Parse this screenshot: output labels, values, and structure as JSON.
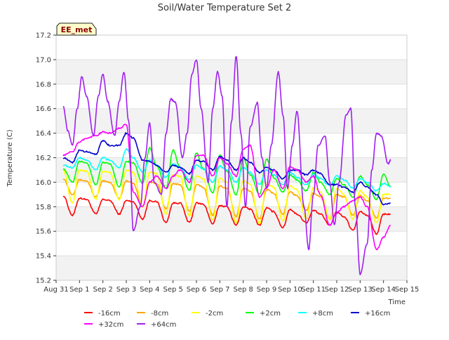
{
  "chart_data": {
    "type": "line",
    "title": "Soil/Water Temperature Set 2",
    "xlabel": "Time",
    "ylabel": "Temperature (C)",
    "station_tag": "EE_met",
    "ylim": [
      15.2,
      17.2
    ],
    "xlim": [
      0,
      15
    ],
    "y_ticks": [
      15.2,
      15.4,
      15.6,
      15.8,
      16.0,
      16.2,
      16.4,
      16.6,
      16.8,
      17.0,
      17.2
    ],
    "y_tick_labels": [
      "15.2",
      "15.4",
      "15.6",
      "15.8",
      "16.0",
      "16.2",
      "16.4",
      "16.6",
      "16.8",
      "17.0",
      "17.2"
    ],
    "x_ticks": [
      0,
      1,
      2,
      3,
      4,
      5,
      6,
      7,
      8,
      9,
      10,
      11,
      12,
      13,
      14,
      15
    ],
    "x_tick_labels": [
      "Aug 31",
      "Sep 1",
      "Sep 2",
      "Sep 3",
      "Sep 4",
      "Sep 5",
      "Sep 6",
      "Sep 7",
      "Sep 8",
      "Sep 9",
      "Sep 10",
      "Sep 11",
      "Sep 12",
      "Sep 13",
      "Sep 14",
      "Sep 15"
    ],
    "grid": "horizontal bands",
    "legend_position": "bottom",
    "series": [
      {
        "name": "-16cm",
        "color": "#ff0000",
        "x": [
          0.3,
          0.7,
          1.0,
          1.3,
          1.7,
          2.0,
          2.3,
          2.7,
          3.0,
          3.3,
          3.7,
          4.0,
          4.3,
          4.7,
          5.0,
          5.3,
          5.7,
          6.0,
          6.3,
          6.7,
          7.0,
          7.3,
          7.7,
          8.0,
          8.3,
          8.7,
          9.0,
          9.3,
          9.7,
          10.0,
          10.3,
          10.7,
          11.0,
          11.3,
          11.7,
          12.0,
          12.3,
          12.7,
          13.0,
          13.3,
          13.7,
          14.0,
          14.3
        ],
        "y": [
          15.89,
          15.73,
          15.87,
          15.86,
          15.74,
          15.86,
          15.85,
          15.74,
          15.85,
          15.84,
          15.7,
          15.85,
          15.84,
          15.67,
          15.83,
          15.83,
          15.67,
          15.83,
          15.82,
          15.66,
          15.81,
          15.8,
          15.65,
          15.8,
          15.78,
          15.65,
          15.79,
          15.76,
          15.63,
          15.78,
          15.74,
          15.67,
          15.77,
          15.74,
          15.65,
          15.76,
          15.72,
          15.61,
          15.76,
          15.73,
          15.58,
          15.74,
          15.74
        ]
      },
      {
        "name": "-8cm",
        "color": "#ffa500",
        "x": [
          0.3,
          0.7,
          1.0,
          1.3,
          1.7,
          2.0,
          2.3,
          2.7,
          3.0,
          3.3,
          3.7,
          4.0,
          4.3,
          4.7,
          5.0,
          5.3,
          5.7,
          6.0,
          6.3,
          6.7,
          7.0,
          7.3,
          7.7,
          8.0,
          8.3,
          8.7,
          9.0,
          9.3,
          9.7,
          10.0,
          10.3,
          10.7,
          11.0,
          11.3,
          11.7,
          12.0,
          12.3,
          12.7,
          13.0,
          13.3,
          13.7,
          14.0,
          14.3
        ],
        "y": [
          16.03,
          15.9,
          16.02,
          16.01,
          15.88,
          16.01,
          16.0,
          15.87,
          16.01,
          15.99,
          15.8,
          16.0,
          15.99,
          15.78,
          15.99,
          15.98,
          15.76,
          15.98,
          15.96,
          15.73,
          15.97,
          15.95,
          15.72,
          15.95,
          15.93,
          15.7,
          15.94,
          15.91,
          15.74,
          15.92,
          15.89,
          15.77,
          15.91,
          15.88,
          15.7,
          15.9,
          15.88,
          15.73,
          15.89,
          15.85,
          15.71,
          15.87,
          15.87
        ]
      },
      {
        "name": "-2cm",
        "color": "#ffff00",
        "x": [
          0.3,
          0.7,
          1.0,
          1.3,
          1.7,
          2.0,
          2.3,
          2.7,
          3.0,
          3.3,
          3.7,
          4.0,
          4.3,
          4.7,
          5.0,
          5.3,
          5.7,
          6.0,
          6.3,
          6.7,
          7.0,
          7.3,
          7.7,
          8.0,
          8.3,
          8.7,
          9.0,
          9.3,
          9.7,
          10.0,
          10.3,
          10.7,
          11.0,
          11.3,
          11.7,
          12.0,
          12.3,
          12.7,
          13.0,
          13.3,
          13.7,
          14.0,
          14.3
        ],
        "y": [
          16.1,
          15.83,
          16.1,
          16.09,
          15.86,
          16.09,
          16.08,
          15.86,
          16.1,
          16.08,
          15.8,
          16.08,
          16.07,
          15.74,
          16.06,
          16.05,
          15.72,
          16.05,
          16.03,
          15.69,
          16.03,
          16.0,
          15.67,
          16.01,
          15.98,
          15.66,
          15.99,
          15.96,
          15.68,
          15.97,
          15.94,
          15.7,
          15.96,
          15.92,
          15.7,
          15.95,
          15.9,
          15.7,
          15.93,
          15.88,
          15.67,
          15.9,
          15.9
        ]
      },
      {
        "name": "+2cm",
        "color": "#00ff00",
        "x": [
          0.3,
          0.7,
          1.0,
          1.3,
          1.7,
          2.0,
          2.3,
          2.7,
          3.0,
          3.3,
          3.7,
          4.0,
          4.3,
          4.7,
          5.0,
          5.3,
          5.7,
          6.0,
          6.3,
          6.7,
          7.0,
          7.3,
          7.7,
          8.0,
          8.3,
          8.7,
          9.0,
          9.3,
          9.7,
          10.0,
          10.3,
          10.7,
          11.0,
          11.3,
          11.7,
          12.0,
          12.3,
          12.7,
          13.0,
          13.3,
          13.7,
          14.0,
          14.3
        ],
        "y": [
          16.11,
          16.0,
          16.17,
          16.16,
          15.98,
          16.16,
          16.15,
          15.96,
          16.17,
          16.16,
          15.99,
          16.28,
          16.13,
          15.95,
          16.26,
          16.12,
          15.93,
          16.24,
          16.11,
          15.91,
          16.22,
          16.09,
          15.9,
          16.2,
          16.06,
          15.9,
          16.19,
          16.04,
          15.92,
          16.06,
          16.02,
          15.93,
          16.08,
          16.0,
          15.9,
          16.03,
          15.98,
          15.88,
          16.05,
          15.98,
          15.86,
          16.07,
          15.96
        ]
      },
      {
        "name": "+8cm",
        "color": "#00ffff",
        "x": [
          0.3,
          0.7,
          1.0,
          1.3,
          1.7,
          2.0,
          2.3,
          2.7,
          3.0,
          3.3,
          3.7,
          4.0,
          4.3,
          4.7,
          5.0,
          5.3,
          5.7,
          6.0,
          6.3,
          6.7,
          7.0,
          7.3,
          7.7,
          8.0,
          8.3,
          8.7,
          9.0,
          9.3,
          9.7,
          10.0,
          10.3,
          10.7,
          11.0,
          11.3,
          11.7,
          12.0,
          12.3,
          12.7,
          13.0,
          13.3,
          13.7,
          14.0,
          14.3
        ],
        "y": [
          16.14,
          16.12,
          16.2,
          16.18,
          16.1,
          16.2,
          16.18,
          16.12,
          16.27,
          16.2,
          16.08,
          16.18,
          16.14,
          16.04,
          16.15,
          16.12,
          16.02,
          16.14,
          16.11,
          16.0,
          16.13,
          16.1,
          16.0,
          16.12,
          16.08,
          15.98,
          16.1,
          16.06,
          15.98,
          16.08,
          16.04,
          15.98,
          16.07,
          16.03,
          15.97,
          16.05,
          16.02,
          15.95,
          16.03,
          16.0,
          15.93,
          15.99,
          15.96
        ]
      },
      {
        "name": "+16cm",
        "color": "#0000cd",
        "x": [
          0.3,
          0.7,
          1.0,
          1.3,
          1.7,
          2.0,
          2.3,
          2.7,
          3.0,
          3.3,
          3.7,
          4.0,
          4.3,
          4.7,
          5.0,
          5.3,
          5.7,
          6.0,
          6.3,
          6.7,
          7.0,
          7.3,
          7.7,
          8.0,
          8.3,
          8.7,
          9.0,
          9.3,
          9.7,
          10.0,
          10.3,
          10.7,
          11.0,
          11.3,
          11.7,
          12.0,
          12.3,
          12.7,
          13.0,
          13.3,
          13.7,
          14.0,
          14.3
        ],
        "y": [
          16.2,
          16.16,
          16.26,
          16.25,
          16.23,
          16.34,
          16.3,
          16.3,
          16.4,
          16.36,
          16.18,
          16.17,
          16.14,
          16.08,
          16.14,
          16.12,
          16.07,
          16.18,
          16.17,
          16.1,
          16.21,
          16.18,
          16.1,
          16.2,
          16.16,
          16.08,
          16.12,
          16.1,
          16.03,
          16.1,
          16.1,
          16.06,
          16.1,
          16.07,
          15.98,
          15.98,
          15.96,
          15.92,
          16.0,
          15.96,
          15.9,
          15.82,
          15.83
        ]
      },
      {
        "name": "+32cm",
        "color": "#ff00ff",
        "x": [
          0.3,
          0.7,
          1.0,
          1.3,
          1.7,
          2.0,
          2.3,
          2.7,
          3.0,
          3.3,
          3.7,
          4.0,
          4.3,
          4.7,
          5.0,
          5.3,
          5.7,
          6.0,
          6.3,
          6.7,
          7.0,
          7.3,
          7.7,
          8.0,
          8.3,
          8.7,
          9.0,
          9.3,
          9.7,
          10.0,
          10.3,
          10.7,
          11.0,
          11.3,
          11.7,
          12.0,
          12.3,
          12.7,
          13.0,
          13.3,
          13.7,
          14.0,
          14.3
        ],
        "y": [
          16.22,
          16.25,
          16.33,
          16.36,
          16.38,
          16.41,
          16.4,
          16.44,
          16.47,
          15.92,
          15.8,
          16.0,
          16.05,
          15.95,
          16.05,
          16.1,
          16.0,
          16.22,
          16.22,
          16.05,
          16.2,
          16.15,
          16.05,
          16.27,
          16.3,
          15.88,
          15.95,
          16.1,
          15.95,
          16.13,
          16.1,
          16.0,
          16.05,
          15.9,
          15.65,
          15.75,
          15.8,
          15.85,
          15.88,
          15.8,
          15.45,
          15.55,
          15.65
        ]
      },
      {
        "name": "+64cm",
        "color": "#a020f0",
        "x": [
          0.3,
          0.5,
          0.7,
          0.9,
          1.1,
          1.3,
          1.6,
          1.8,
          2.0,
          2.2,
          2.5,
          2.7,
          2.9,
          3.1,
          3.3,
          3.6,
          3.8,
          4.0,
          4.2,
          4.5,
          4.7,
          4.9,
          5.1,
          5.4,
          5.6,
          5.8,
          6.0,
          6.2,
          6.5,
          6.7,
          6.9,
          7.1,
          7.3,
          7.5,
          7.7,
          7.9,
          8.1,
          8.3,
          8.6,
          8.8,
          9.0,
          9.2,
          9.5,
          9.7,
          9.9,
          10.1,
          10.3,
          10.6,
          10.8,
          11.0,
          11.2,
          11.5,
          11.7,
          11.9,
          12.1,
          12.4,
          12.6,
          12.8,
          13.0,
          13.3,
          13.5,
          13.7,
          13.9,
          14.2,
          14.3
        ],
        "y": [
          16.62,
          16.42,
          16.3,
          16.6,
          16.86,
          16.7,
          16.38,
          16.7,
          16.88,
          16.66,
          16.38,
          16.66,
          16.9,
          16.5,
          15.6,
          15.8,
          16.2,
          16.48,
          16.0,
          15.9,
          16.4,
          16.68,
          16.65,
          16.2,
          16.4,
          16.88,
          17.0,
          16.6,
          16.0,
          16.6,
          16.9,
          16.7,
          15.8,
          16.5,
          17.03,
          16.4,
          15.8,
          16.45,
          16.65,
          16.2,
          15.95,
          16.3,
          16.9,
          16.55,
          15.95,
          16.3,
          16.58,
          15.8,
          15.45,
          15.9,
          16.3,
          16.38,
          16.0,
          15.65,
          16.0,
          16.55,
          16.6,
          15.8,
          15.25,
          15.5,
          16.1,
          16.4,
          16.38,
          16.15,
          16.18
        ]
      }
    ]
  }
}
